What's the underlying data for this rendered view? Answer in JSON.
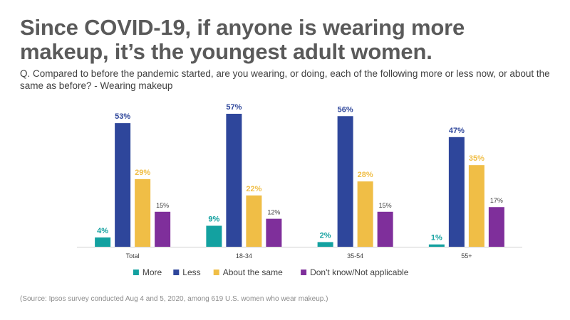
{
  "header": {
    "title": "Since COVID-19, if anyone is wearing more makeup, it’s the youngest adult women.",
    "question": "Q. Compared to before the pandemic started, are you wearing, or doing, each of the following more or less now, or about the same as before? - Wearing makeup"
  },
  "chart_data": {
    "type": "bar",
    "categories": [
      "Total",
      "18-34",
      "35-54",
      "55+"
    ],
    "series": [
      {
        "name": "More",
        "color": "#13a1a0",
        "values": [
          4,
          9,
          2,
          1
        ],
        "labels": [
          "4%",
          "9%",
          "2%",
          "1%"
        ]
      },
      {
        "name": "Less",
        "color": "#2e469b",
        "values": [
          53,
          57,
          56,
          47
        ],
        "labels": [
          "53%",
          "57%",
          "56%",
          "47%"
        ]
      },
      {
        "name": "About the same",
        "color": "#f0be46",
        "values": [
          29,
          22,
          28,
          35
        ],
        "labels": [
          "29%",
          "22%",
          "28%",
          "35%"
        ]
      },
      {
        "name": "Don't know/Not applicable",
        "color": "#7f2f9b",
        "values": [
          15,
          12,
          15,
          17
        ],
        "labels": [
          "15%",
          "12%",
          "15%",
          "17%"
        ]
      }
    ],
    "ylim": [
      0,
      57
    ],
    "legend_position": "bottom"
  },
  "footer": {
    "source": "(Source: Ipsos survey conducted Aug 4 and 5, 2020, among 619 U.S. women who wear makeup.)"
  }
}
